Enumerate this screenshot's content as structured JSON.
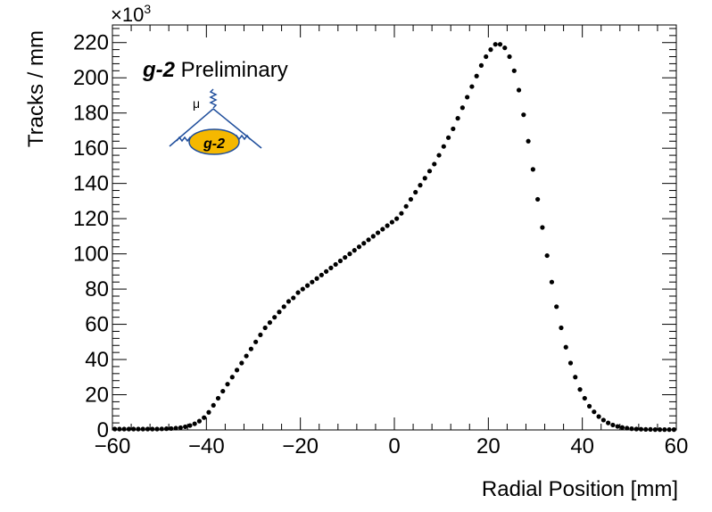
{
  "chart_data": {
    "type": "scatter",
    "title": "",
    "xlabel": "Radial Position [mm]",
    "ylabel": "Tracks / mm",
    "y_multiplier_label": "×10",
    "y_multiplier_exp": "3",
    "xlim": [
      -60,
      60
    ],
    "ylim": [
      0,
      230
    ],
    "grid": false,
    "x_ticks": [
      -60,
      -40,
      -20,
      0,
      20,
      40,
      60
    ],
    "x_tick_labels": [
      "−60",
      "−40",
      "−20",
      "0",
      "20",
      "40",
      "60"
    ],
    "y_ticks": [
      0,
      20,
      40,
      60,
      80,
      100,
      120,
      140,
      160,
      180,
      200,
      220
    ],
    "y_tick_labels": [
      "0",
      "20",
      "40",
      "60",
      "80",
      "100",
      "120",
      "140",
      "160",
      "180",
      "200",
      "220"
    ],
    "series": [
      {
        "marker_color": "#000000",
        "x": [
          -59.5,
          -58.5,
          -57.5,
          -56.5,
          -55.5,
          -54.5,
          -53.5,
          -52.5,
          -51.5,
          -50.5,
          -49.5,
          -48.5,
          -47.5,
          -46.5,
          -45.5,
          -44.5,
          -43.5,
          -42.5,
          -41.5,
          -40.5,
          -39.5,
          -38.5,
          -37.5,
          -36.5,
          -35.5,
          -34.5,
          -33.5,
          -32.5,
          -31.5,
          -30.5,
          -29.5,
          -28.5,
          -27.5,
          -26.5,
          -25.5,
          -24.5,
          -23.5,
          -22.5,
          -21.5,
          -20.5,
          -19.5,
          -18.5,
          -17.5,
          -16.5,
          -15.5,
          -14.5,
          -13.5,
          -12.5,
          -11.5,
          -10.5,
          -9.5,
          -8.5,
          -7.5,
          -6.5,
          -5.5,
          -4.5,
          -3.5,
          -2.5,
          -1.5,
          -0.5,
          0.5,
          1.5,
          2.5,
          3.5,
          4.5,
          5.5,
          6.5,
          7.5,
          8.5,
          9.5,
          10.5,
          11.5,
          12.5,
          13.5,
          14.5,
          15.5,
          16.5,
          17.5,
          18.5,
          19.5,
          20.5,
          21.5,
          22.5,
          23.5,
          24.5,
          25.5,
          26.5,
          27.5,
          28.5,
          29.5,
          30.5,
          31.5,
          32.5,
          33.5,
          34.5,
          35.5,
          36.5,
          37.5,
          38.5,
          39.5,
          40.5,
          41.5,
          42.5,
          43.5,
          44.5,
          45.5,
          46.5,
          47.5,
          48.5,
          49.5,
          50.5,
          51.5,
          52.5,
          53.5,
          54.5,
          55.5,
          56.5,
          57.5,
          58.5,
          59.5
        ],
        "y": [
          0.5,
          0.5,
          0.5,
          0.5,
          0.5,
          0.5,
          0.5,
          0.5,
          0.5,
          0.5,
          0.6,
          0.7,
          0.8,
          1.0,
          1.3,
          1.8,
          2.5,
          3.5,
          5,
          7,
          10,
          14,
          18,
          22,
          26,
          30,
          34,
          38,
          42,
          46,
          50,
          54,
          58,
          61,
          64,
          67,
          70,
          73,
          75,
          78,
          80,
          82,
          84,
          86,
          88,
          90,
          92,
          94,
          96,
          98,
          100,
          102,
          104,
          106,
          108,
          110,
          112,
          114,
          116,
          118,
          120,
          123,
          127,
          131,
          135,
          139,
          143,
          147,
          151,
          156,
          161,
          166,
          171,
          177,
          183,
          189,
          195,
          201,
          207,
          212,
          216,
          219,
          219,
          217,
          212,
          204,
          193,
          179,
          164,
          148,
          131,
          115,
          99,
          84,
          70,
          58,
          47,
          38,
          30,
          23,
          18,
          13.5,
          10.3,
          7.6,
          5.6,
          4.0,
          2.8,
          2.0,
          1.4,
          1.0,
          0.7,
          0.5,
          0.4,
          0.3,
          0.3,
          0.2,
          0.2,
          0.2,
          0.2,
          0.2
        ]
      }
    ]
  },
  "annotations": {
    "badge_italic": "g-2",
    "badge_text": " Preliminary",
    "logo_mu": "μ",
    "logo_text": "g-2",
    "logo_name": "g-2 feynman-diagram logo",
    "logo_ellipse_color": "#f5b800",
    "logo_line_color": "#1f4e9c"
  }
}
